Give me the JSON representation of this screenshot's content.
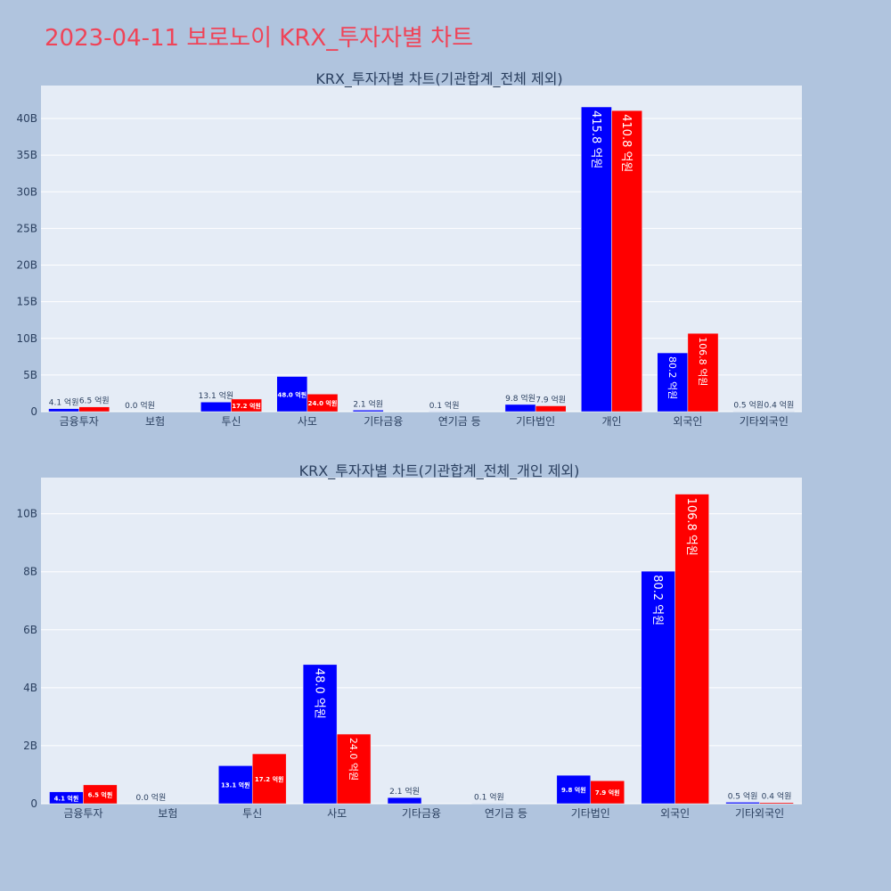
{
  "title": "2023-04-11 보로노이 KRX_투자자별 차트",
  "colors": {
    "buy": "#0000ff",
    "sell": "#ff0000",
    "title": "#ef4458",
    "background": "#b0c4de",
    "plot_background": "#e5ecf6"
  },
  "chart_data": [
    {
      "type": "bar",
      "title": "KRX_투자자별 차트(기관합계_전체 제외)",
      "categories": [
        "금융투자",
        "보험",
        "투신",
        "사모",
        "기타금융",
        "연기금 등",
        "기타법인",
        "개인",
        "외국인",
        "기타외국인"
      ],
      "series": [
        {
          "color": "#0000ff",
          "values": [
            0.41,
            0.0,
            1.31,
            4.8,
            0.21,
            0.01,
            0.98,
            41.58,
            8.02,
            0.05
          ],
          "labels": [
            "4.1 억원",
            "0.0 억원",
            "13.1 억원",
            "48.0 억원",
            "2.1 억원",
            "0.1 억원",
            "9.8 억원",
            "415.8 억원",
            "80.2 억원",
            "0.5 억원"
          ]
        },
        {
          "color": "#ff0000",
          "values": [
            0.65,
            0,
            1.72,
            2.4,
            0,
            0,
            0.79,
            41.08,
            10.68,
            0.04
          ],
          "labels": [
            "6.5 억원",
            "",
            "17.2 억원",
            "24.0 억원",
            "",
            "",
            "7.9 억원",
            "410.8 억원",
            "106.8 억원",
            "0.4 억원"
          ]
        }
      ],
      "ylim": [
        0,
        44.5
      ],
      "yticks": [
        0,
        5,
        10,
        15,
        20,
        25,
        30,
        35,
        40
      ],
      "ytick_labels": [
        "0",
        "5B",
        "10B",
        "15B",
        "20B",
        "25B",
        "30B",
        "35B",
        "40B"
      ],
      "grid": true,
      "legend": "none"
    },
    {
      "type": "bar",
      "title": "KRX_투자자별 차트(기관합계_전체_개인 제외)",
      "categories": [
        "금융투자",
        "보험",
        "투신",
        "사모",
        "기타금융",
        "연기금 등",
        "기타법인",
        "외국인",
        "기타외국인"
      ],
      "series": [
        {
          "color": "#0000ff",
          "values": [
            0.41,
            0.0,
            1.31,
            4.8,
            0.21,
            0.01,
            0.98,
            8.02,
            0.05
          ],
          "labels": [
            "4.1 억원",
            "0.0 억원",
            "13.1 억원",
            "48.0 억원",
            "2.1 억원",
            "0.1 억원",
            "9.8 억원",
            "80.2 억원",
            "0.5 억원"
          ]
        },
        {
          "color": "#ff0000",
          "values": [
            0.65,
            0,
            1.72,
            2.4,
            0,
            0,
            0.79,
            10.68,
            0.04
          ],
          "labels": [
            "6.5 억원",
            "",
            "17.2 억원",
            "24.0 억원",
            "",
            "",
            "7.9 억원",
            "106.8 억원",
            "0.4 억원"
          ]
        }
      ],
      "ylim": [
        0,
        11.25
      ],
      "yticks": [
        0,
        2,
        4,
        6,
        8,
        10
      ],
      "ytick_labels": [
        "0",
        "2B",
        "4B",
        "6B",
        "8B",
        "10B"
      ],
      "grid": true,
      "legend": "none"
    }
  ]
}
